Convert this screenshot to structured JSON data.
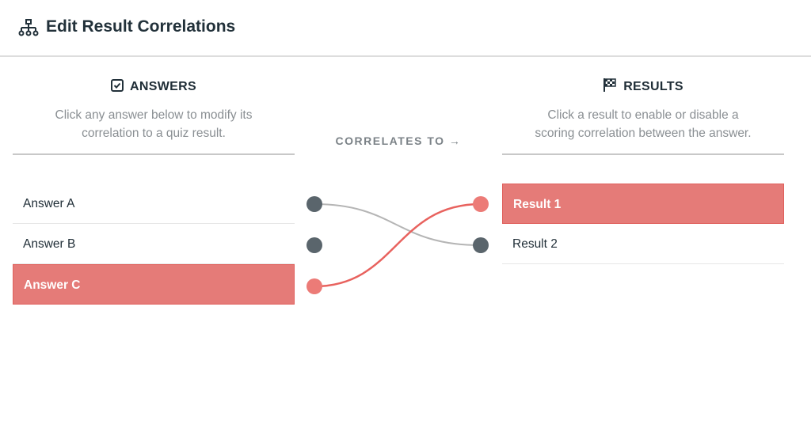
{
  "header": {
    "title": "Edit Result Correlations",
    "icon": "sitemap-icon"
  },
  "answers": {
    "heading": "ANSWERS",
    "icon": "checkbox-icon",
    "description_line1": "Click any answer below to modify its",
    "description_line2": "correlation to a quiz result.",
    "items": [
      {
        "label": "Answer A",
        "active": false
      },
      {
        "label": "Answer B",
        "active": false
      },
      {
        "label": "Answer C",
        "active": true
      }
    ]
  },
  "middle": {
    "label": "CORRELATES TO →"
  },
  "results": {
    "heading": "RESULTS",
    "icon": "checkered-flag-icon",
    "description_line1": "Click a result to enable or disable a",
    "description_line2": "scoring correlation between the answer.",
    "items": [
      {
        "label": "Result 1",
        "active": true
      },
      {
        "label": "Result 2",
        "active": false
      }
    ]
  },
  "correlations": [
    {
      "answer": "Answer A",
      "result": "Result 2",
      "active": false
    },
    {
      "answer": "Answer C",
      "result": "Result 1",
      "active": true
    }
  ],
  "colors": {
    "accent": "#e57b78",
    "node": "#5a656c",
    "link_inactive": "#b5b5b5",
    "link_active": "#e8625e"
  }
}
